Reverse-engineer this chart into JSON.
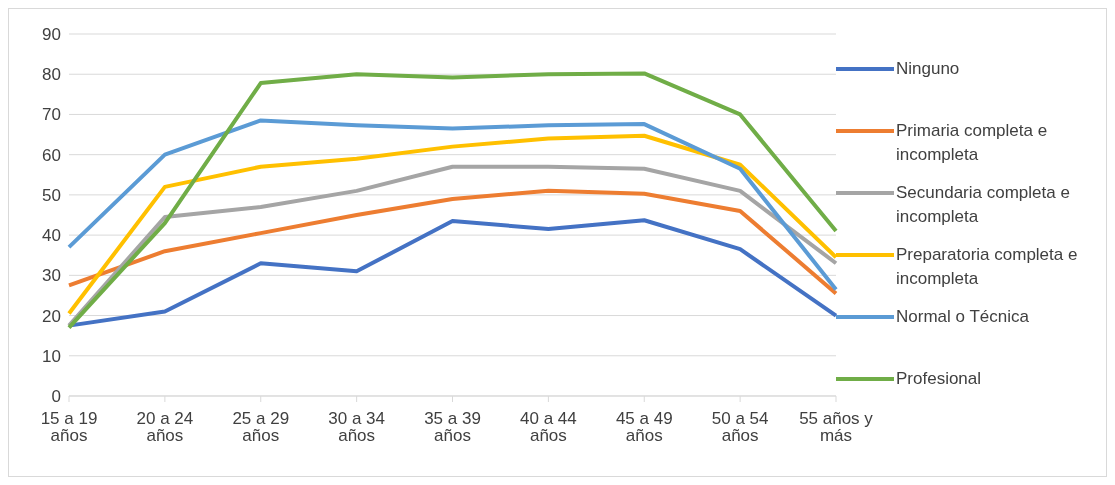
{
  "chart_data": {
    "type": "line",
    "categories": [
      "15 a 19 años",
      "20 a 24 años",
      "25 a 29 años",
      "30 a 34 años",
      "35 a 39 años",
      "40 a 44 años",
      "45 a 49 años",
      "50 a 54 años",
      "55 años y más"
    ],
    "series": [
      {
        "name": "Ninguno",
        "color": "#4472c4",
        "values": [
          17.5,
          21,
          33,
          31,
          43.5,
          41.5,
          43.7,
          36.5,
          20
        ]
      },
      {
        "name": "Primaria completa e incompleta",
        "color": "#ed7d31",
        "values": [
          27.5,
          36,
          40.5,
          45,
          49,
          51,
          50.3,
          46,
          25.5
        ]
      },
      {
        "name": "Secundaria completa e incompleta",
        "color": "#a5a5a5",
        "values": [
          17.5,
          44.5,
          47,
          51,
          57,
          57,
          56.5,
          51,
          33
        ]
      },
      {
        "name": "Preparatoria completa e incompleta",
        "color": "#ffc000",
        "values": [
          20.5,
          52,
          57,
          59,
          62,
          64,
          64.7,
          57.5,
          34.5
        ]
      },
      {
        "name": "Normal o Técnica",
        "color": "#5b9bd5",
        "values": [
          37,
          60,
          68.5,
          67.3,
          66.5,
          67.3,
          67.6,
          56.5,
          26.5
        ]
      },
      {
        "name": "Profesional",
        "color": "#70ad47",
        "values": [
          17,
          43,
          77.8,
          80,
          79.2,
          80,
          80.2,
          70,
          41
        ]
      }
    ],
    "ylim": [
      0,
      90
    ],
    "yticks": [
      0,
      10,
      20,
      30,
      40,
      50,
      60,
      70,
      80,
      90
    ],
    "grid": "y",
    "legend": "right"
  }
}
